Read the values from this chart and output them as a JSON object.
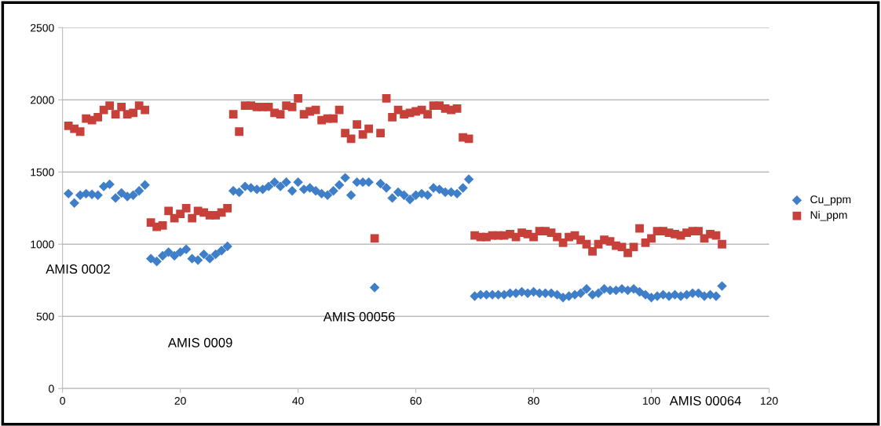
{
  "chart_data": {
    "type": "scatter",
    "x": [
      1,
      2,
      3,
      4,
      5,
      6,
      7,
      8,
      9,
      10,
      11,
      12,
      13,
      14,
      15,
      16,
      17,
      18,
      19,
      20,
      21,
      22,
      23,
      24,
      25,
      26,
      27,
      28,
      29,
      30,
      31,
      32,
      33,
      34,
      35,
      36,
      37,
      38,
      39,
      40,
      41,
      42,
      43,
      44,
      45,
      46,
      47,
      48,
      49,
      50,
      51,
      52,
      53,
      54,
      55,
      56,
      57,
      58,
      59,
      60,
      61,
      62,
      63,
      64,
      65,
      66,
      67,
      68,
      69,
      70,
      71,
      72,
      73,
      74,
      75,
      76,
      77,
      78,
      79,
      80,
      81,
      82,
      83,
      84,
      85,
      86,
      87,
      88,
      89,
      90,
      91,
      92,
      93,
      94,
      95,
      96,
      97,
      98,
      99,
      100,
      101,
      102,
      103,
      104,
      105,
      106,
      107,
      108,
      109,
      110,
      111,
      112
    ],
    "series": [
      {
        "name": "Cu_ppm",
        "color": "#3f7ec8",
        "marker": "diamond",
        "values": [
          1350,
          1285,
          1340,
          1350,
          1345,
          1340,
          1400,
          1415,
          1320,
          1355,
          1330,
          1340,
          1370,
          1410,
          900,
          880,
          920,
          945,
          920,
          945,
          965,
          900,
          890,
          930,
          900,
          930,
          955,
          985,
          1370,
          1360,
          1400,
          1390,
          1380,
          1380,
          1400,
          1430,
          1400,
          1430,
          1370,
          1430,
          1380,
          1390,
          1370,
          1350,
          1340,
          1370,
          1410,
          1460,
          1340,
          1430,
          1430,
          1430,
          700,
          1420,
          1390,
          1320,
          1360,
          1340,
          1310,
          1340,
          1350,
          1340,
          1390,
          1380,
          1360,
          1360,
          1350,
          1390,
          1450,
          640,
          650,
          650,
          650,
          650,
          650,
          660,
          660,
          670,
          660,
          670,
          660,
          660,
          660,
          650,
          630,
          640,
          650,
          660,
          690,
          650,
          660,
          690,
          680,
          680,
          690,
          680,
          690,
          670,
          650,
          630,
          640,
          650,
          640,
          650,
          640,
          650,
          660,
          660,
          640,
          650,
          640,
          710
        ]
      },
      {
        "name": "Ni_ppm",
        "color": "#c8403a",
        "marker": "square",
        "values": [
          1820,
          1800,
          1780,
          1870,
          1860,
          1880,
          1930,
          1960,
          1900,
          1950,
          1900,
          1910,
          1960,
          1930,
          1150,
          1120,
          1130,
          1230,
          1180,
          1210,
          1250,
          1180,
          1230,
          1220,
          1200,
          1200,
          1220,
          1250,
          1900,
          1780,
          1960,
          1960,
          1950,
          1950,
          1950,
          1910,
          1900,
          1960,
          1950,
          2010,
          1900,
          1920,
          1930,
          1860,
          1870,
          1870,
          1930,
          1770,
          1730,
          1830,
          1760,
          1800,
          1040,
          1770,
          2010,
          1880,
          1930,
          1900,
          1910,
          1920,
          1930,
          1900,
          1960,
          1960,
          1940,
          1930,
          1940,
          1740,
          1730,
          1060,
          1050,
          1050,
          1060,
          1060,
          1060,
          1070,
          1050,
          1080,
          1070,
          1050,
          1090,
          1090,
          1080,
          1050,
          1010,
          1050,
          1060,
          1030,
          1000,
          950,
          1000,
          1030,
          1020,
          990,
          980,
          940,
          980,
          1110,
          1010,
          1040,
          1090,
          1090,
          1080,
          1070,
          1060,
          1080,
          1090,
          1090,
          1040,
          1070,
          1060,
          1000
        ]
      }
    ],
    "xlim": [
      0,
      120
    ],
    "xticks": [
      0,
      20,
      40,
      60,
      80,
      100,
      120
    ],
    "ylim": [
      0,
      2500
    ],
    "yticks": [
      0,
      500,
      1000,
      1500,
      2000,
      2500
    ],
    "grid": "y",
    "legend": "right",
    "annotations": [
      "AMIS 0002",
      "AMIS 0009",
      "AMIS 00056",
      "AMIS 00064"
    ]
  }
}
